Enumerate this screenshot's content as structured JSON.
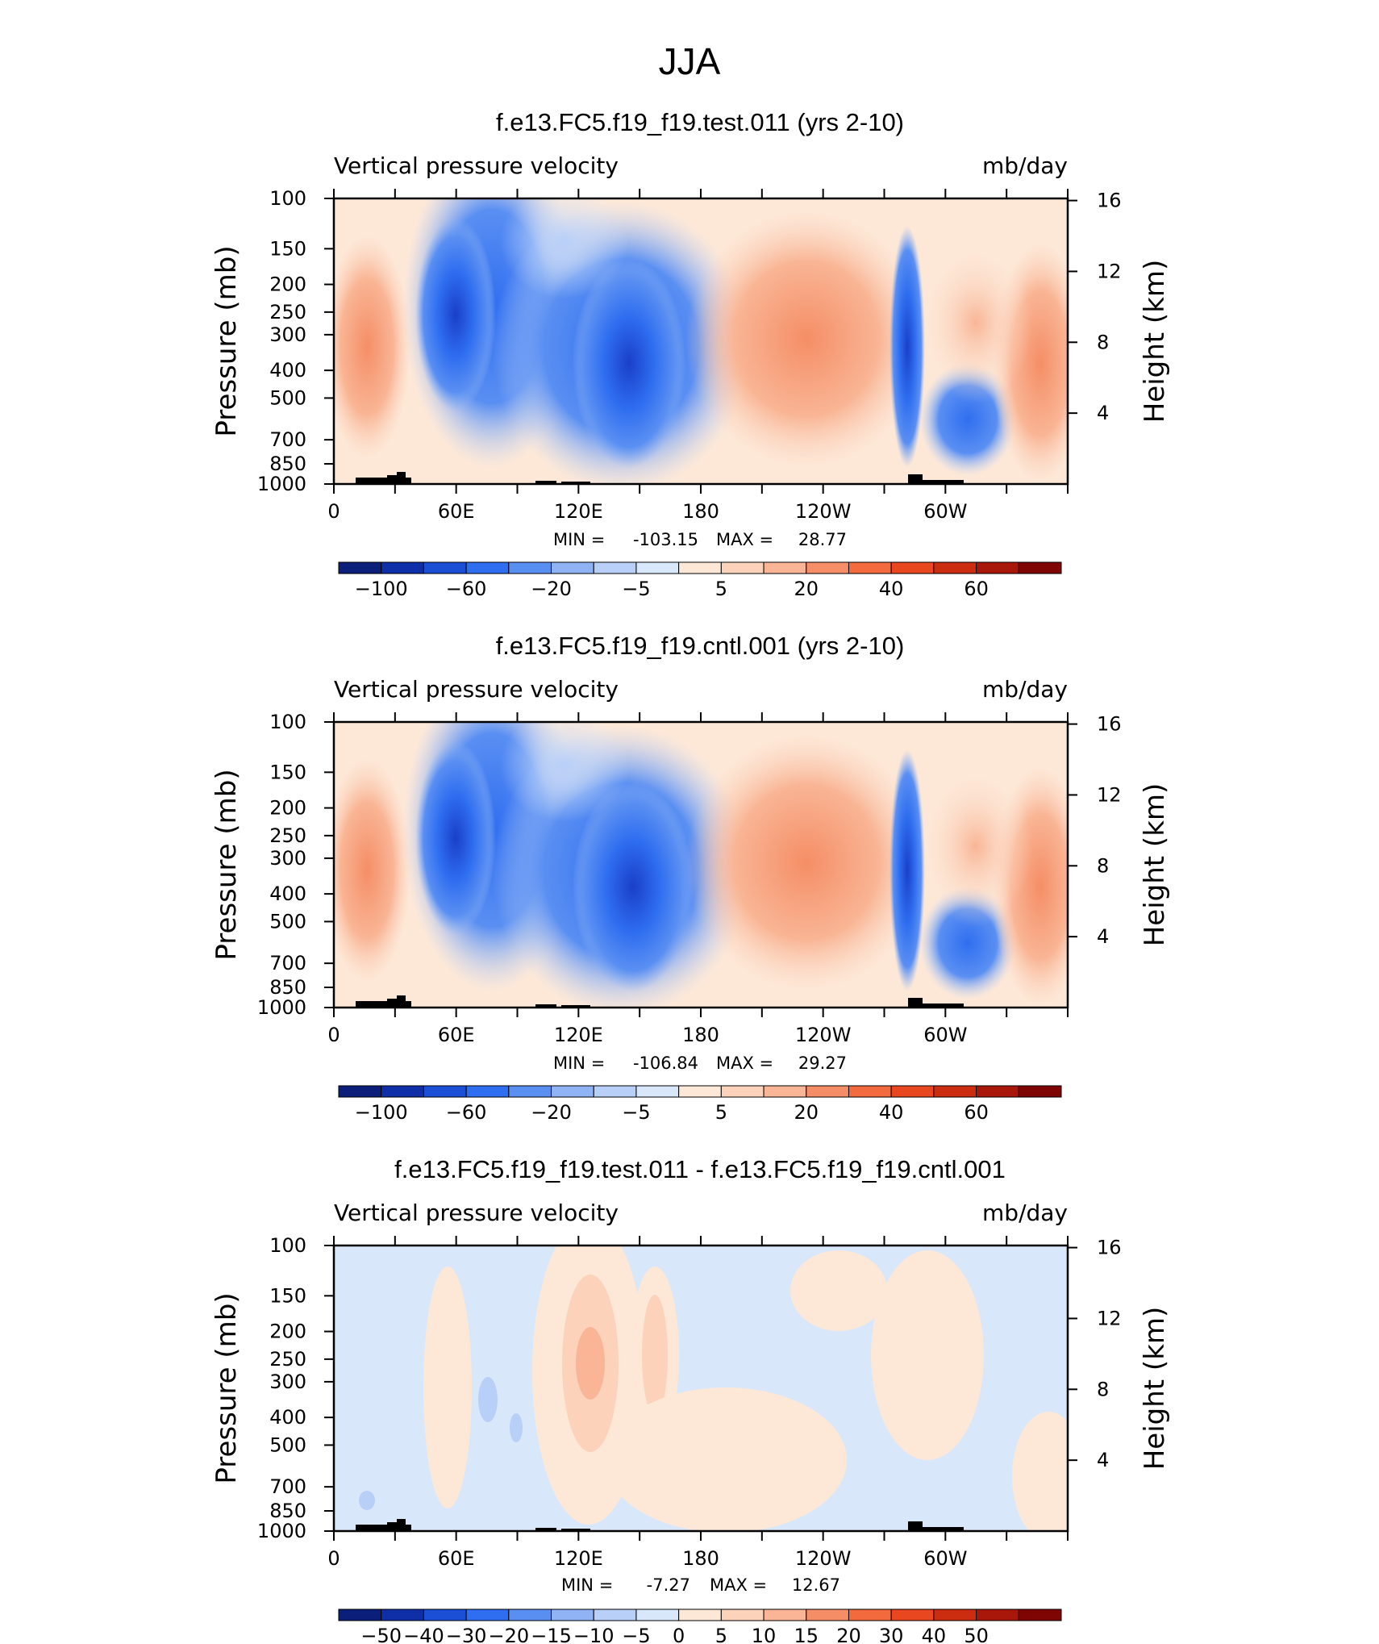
{
  "page_title": "JJA",
  "shared": {
    "x_tick_labels": [
      "0",
      "60E",
      "120E",
      "180",
      "120W",
      "60W"
    ],
    "x_tick_lons": [
      0,
      60,
      120,
      180,
      240,
      300
    ],
    "y_tick_labels": [
      "100",
      "150",
      "200",
      "250",
      "300",
      "400",
      "500",
      "700",
      "850",
      "1000"
    ],
    "y_tick_values": [
      100,
      150,
      200,
      250,
      300,
      400,
      500,
      700,
      850,
      1000
    ],
    "y_axis_label": "Pressure (mb)",
    "y2_axis_label": "Height (km)",
    "y2_tick_labels": [
      "16",
      "12",
      "8",
      "4"
    ],
    "y2_tick_values_km": [
      16,
      12,
      8,
      4
    ],
    "variable_label": "Vertical pressure velocity",
    "units_label": "mb/day",
    "min_label": "MIN =",
    "max_label": "MAX ="
  },
  "chart_data": [
    {
      "type": "heatmap",
      "title": "f.e13.FC5.f19_f19.test.011 (yrs 2-10)",
      "xlabel": "",
      "ylabel": "Pressure (mb)",
      "xlim": [
        0,
        360
      ],
      "ylim": [
        1000,
        100
      ],
      "min": "-103.15",
      "max": "28.77",
      "colorbar_labels": [
        "-100",
        "-60",
        "-20",
        "-5",
        "5",
        "20",
        "40",
        "60"
      ],
      "colorbar_colors": [
        "#0b1f7a",
        "#0e2fa8",
        "#1a4fd6",
        "#2f6ef0",
        "#5a8ff2",
        "#8fb3f5",
        "#b8cff8",
        "#d9e7fb",
        "#fde8d8",
        "#fcd2bb",
        "#f9b595",
        "#f58e66",
        "#f26a3d",
        "#e8471f",
        "#cc2c10",
        "#a8170a",
        "#7f0505"
      ]
    },
    {
      "type": "heatmap",
      "title": "f.e13.FC5.f19_f19.cntl.001 (yrs 2-10)",
      "xlabel": "",
      "ylabel": "Pressure (mb)",
      "xlim": [
        0,
        360
      ],
      "ylim": [
        1000,
        100
      ],
      "min": "-106.84",
      "max": "29.27",
      "colorbar_labels": [
        "-100",
        "-60",
        "-20",
        "-5",
        "5",
        "20",
        "40",
        "60"
      ],
      "colorbar_colors": [
        "#0b1f7a",
        "#0e2fa8",
        "#1a4fd6",
        "#2f6ef0",
        "#5a8ff2",
        "#8fb3f5",
        "#b8cff8",
        "#d9e7fb",
        "#fde8d8",
        "#fcd2bb",
        "#f9b595",
        "#f58e66",
        "#f26a3d",
        "#e8471f",
        "#cc2c10",
        "#a8170a",
        "#7f0505"
      ]
    },
    {
      "type": "heatmap",
      "title": "f.e13.FC5.f19_f19.test.011 - f.e13.FC5.f19_f19.cntl.001",
      "xlabel": "",
      "ylabel": "Pressure (mb)",
      "xlim": [
        0,
        360
      ],
      "ylim": [
        1000,
        100
      ],
      "min": "-7.27",
      "max": "12.67",
      "colorbar_labels": [
        "-50",
        "-40",
        "-30",
        "-20",
        "-15",
        "-10",
        "-5",
        "0",
        "5",
        "10",
        "15",
        "20",
        "30",
        "40",
        "50"
      ],
      "colorbar_colors": [
        "#0b1f7a",
        "#0e2fa8",
        "#1a4fd6",
        "#2f6ef0",
        "#5a8ff2",
        "#8fb3f5",
        "#b8cff8",
        "#d9e7fb",
        "#fde8d8",
        "#fcd2bb",
        "#f9b595",
        "#f58e66",
        "#f26a3d",
        "#e8471f",
        "#cc2c10",
        "#a8170a",
        "#7f0505"
      ]
    }
  ]
}
